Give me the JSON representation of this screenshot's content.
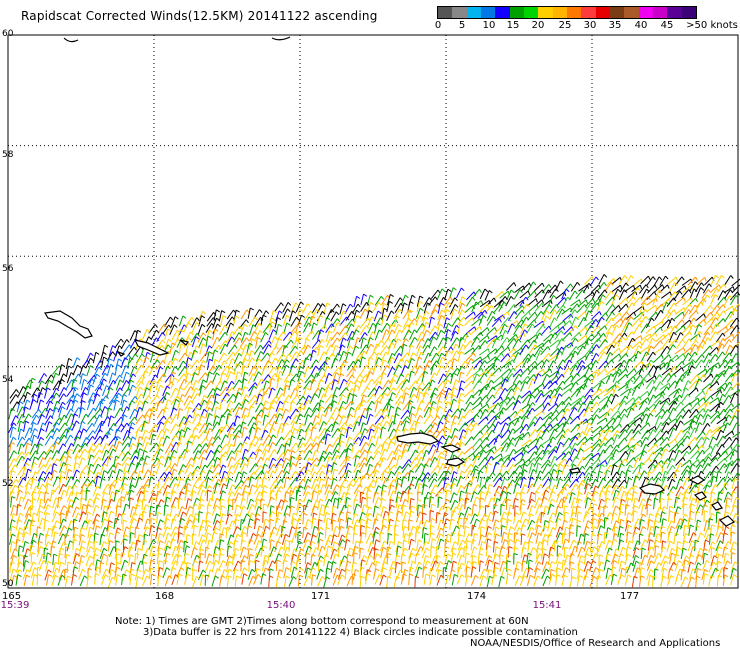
{
  "title": "Rapidscat Corrected Winds(12.5KM) 20141122 ascending",
  "colorbar": {
    "colors": [
      "#555555",
      "#888888",
      "#00b4f0",
      "#0078e6",
      "#1400ff",
      "#00a000",
      "#00d400",
      "#ffd000",
      "#ffb400",
      "#ff7800",
      "#ff3c3c",
      "#e60000",
      "#7a3c14",
      "#aa5a28",
      "#f000f0",
      "#c800c8",
      "#5a0096",
      "#3c0078"
    ],
    "labels": [
      "0",
      "5",
      "10",
      "15",
      "20",
      "25",
      "30",
      "35",
      "40",
      "45",
      ">50 knots"
    ]
  },
  "lat_labels": [
    "60",
    "58",
    "56",
    "54",
    "52",
    "50"
  ],
  "lon_labels": [
    "165",
    "168",
    "171",
    "174",
    "177"
  ],
  "time_labels": [
    "15:39",
    "15:40",
    "15:41"
  ],
  "notes": {
    "line1": "Note: 1) Times are GMT 2)Times along bottom correspond to measurement at 60N",
    "line2": "3)Data buffer is 22 hrs from 20141122 4) Black circles indicate possible contamination",
    "credit": "NOAA/NESDIS/Office of Research and Applications"
  },
  "map": {
    "lat_range": [
      50,
      60
    ],
    "lon_range": [
      165,
      180
    ],
    "grid_lons": [
      168,
      171,
      174,
      177
    ],
    "grid_lats": [
      52,
      54,
      56,
      58,
      60
    ],
    "speed_colors": {
      "calm": "#000000",
      "blue": "#1400ff",
      "lightblue": "#0078e6",
      "green": "#00a000",
      "lightgreen": "#32c832",
      "yellow": "#ffd000",
      "orange": "#ff9600",
      "red": "#e63c00"
    }
  }
}
